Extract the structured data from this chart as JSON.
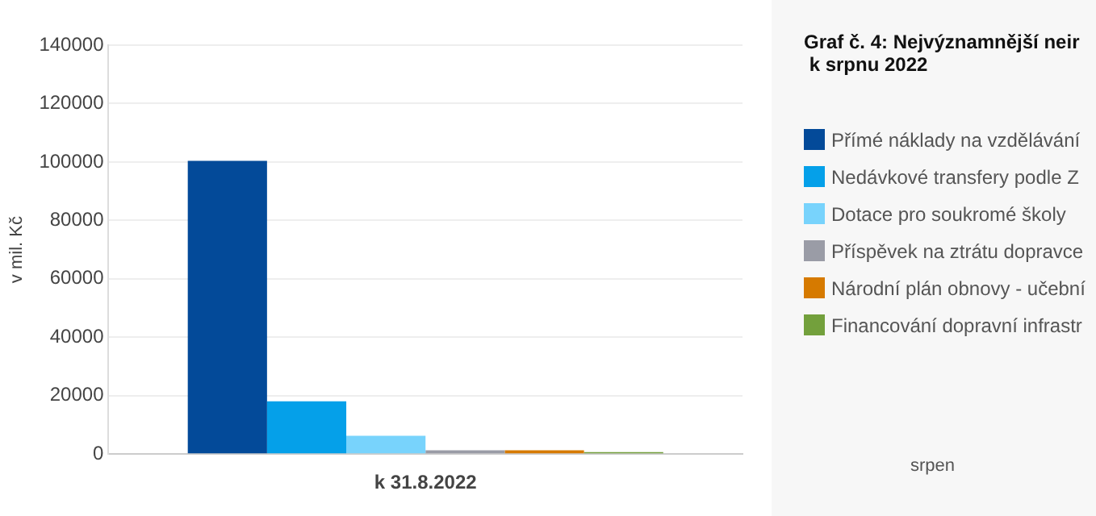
{
  "chart_data": {
    "type": "bar",
    "title": "Graf č. 4: Nejvýznamnější neir\n k srpnu 2022",
    "ylabel": "v mil. Kč",
    "categories": [
      "k 31.8.2022"
    ],
    "series": [
      {
        "name": "Přímé náklady na vzdělávání",
        "color": "#034a99",
        "values": [
          100400
        ]
      },
      {
        "name": "Nedávkové transfery podle Z",
        "color": "#05a0e9",
        "values": [
          18100
        ]
      },
      {
        "name": "Dotace pro soukromé školy",
        "color": "#78d3fc",
        "values": [
          6300
        ]
      },
      {
        "name": "Příspěvek na ztrátu dopravce",
        "color": "#9a9ca6",
        "values": [
          1300
        ]
      },
      {
        "name": "Národní plán obnovy - učební",
        "color": "#d67a00",
        "values": [
          1300
        ]
      },
      {
        "name": "Financování dopravní infrastr",
        "color": "#73a03c",
        "values": [
          700
        ]
      }
    ],
    "ylim": [
      0,
      140000
    ],
    "yticks": [
      0,
      20000,
      40000,
      60000,
      80000,
      100000,
      120000,
      140000
    ],
    "grid": "y",
    "legend": "right",
    "annotations": [
      "srpen"
    ]
  }
}
